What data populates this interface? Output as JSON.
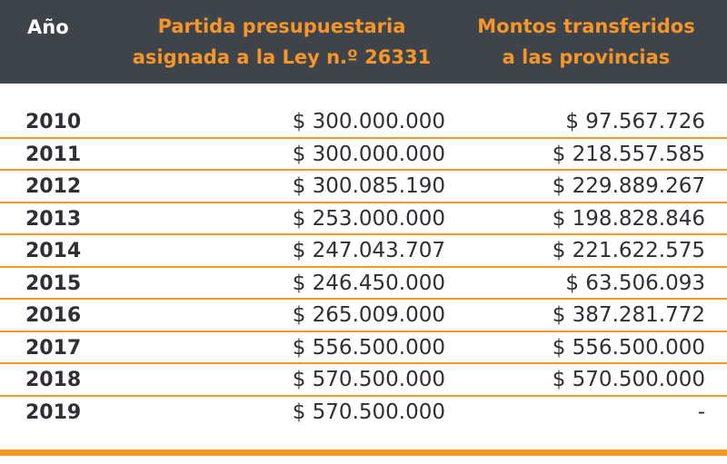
{
  "table": {
    "headers": {
      "year": "Año",
      "budget_line1": "Partida presupuestaria",
      "budget_line2": "asignada a la Ley n.º 26331",
      "transfer_line1": "Montos transferidos",
      "transfer_line2": "a las provincias"
    },
    "rows": [
      {
        "year": "2010",
        "budget": "$ 300.000.000",
        "transfer": "$ 97.567.726"
      },
      {
        "year": "2011",
        "budget": "$ 300.000.000",
        "transfer": "$ 218.557.585"
      },
      {
        "year": "2012",
        "budget": "$ 300.085.190",
        "transfer": "$ 229.889.267"
      },
      {
        "year": "2013",
        "budget": "$ 253.000.000",
        "transfer": "$ 198.828.846"
      },
      {
        "year": "2014",
        "budget": "$ 247.043.707",
        "transfer": "$ 221.622.575"
      },
      {
        "year": "2015",
        "budget": "$ 246.450.000",
        "transfer": "$ 63.506.093"
      },
      {
        "year": "2016",
        "budget": "$ 265.009.000",
        "transfer": "$ 387.281.772"
      },
      {
        "year": "2017",
        "budget": "$ 556.500.000",
        "transfer": "$ 556.500.000"
      },
      {
        "year": "2018",
        "budget": "$ 570.500.000",
        "transfer": "$ 570.500.000"
      },
      {
        "year": "2019",
        "budget": "$ 570.500.000",
        "transfer": "-"
      }
    ]
  },
  "colors": {
    "header_bg": "#3f434a",
    "accent": "#f4962a",
    "text": "#2f2f35"
  }
}
